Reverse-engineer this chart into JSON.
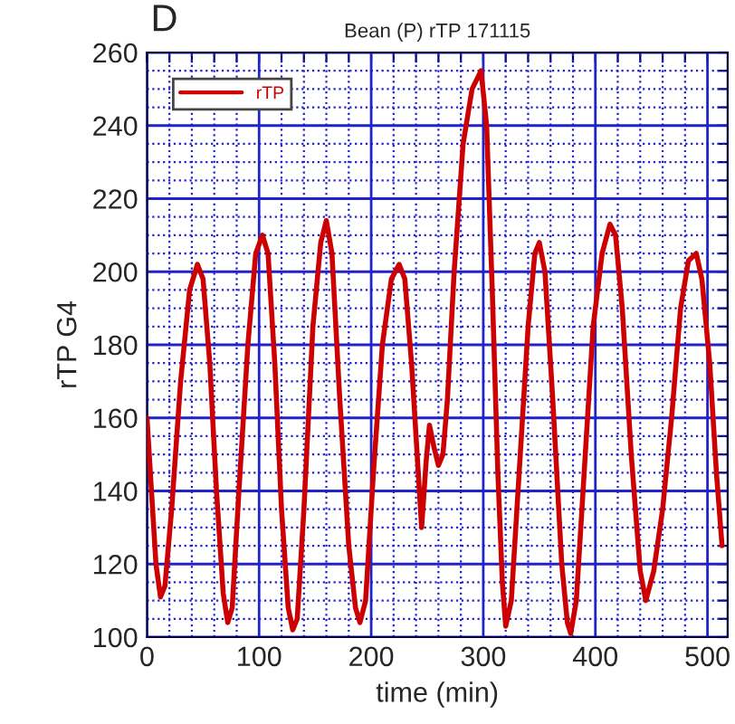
{
  "chart_data": {
    "type": "line",
    "title": "Bean (P) rTP 171115",
    "xlabel": "time (min)",
    "ylabel": "rTP G4",
    "annotations": [
      "D"
    ],
    "x": [
      0,
      4,
      8,
      12,
      16,
      22,
      30,
      38,
      45,
      50,
      56,
      62,
      68,
      72,
      76,
      82,
      90,
      97,
      103,
      108,
      114,
      120,
      126,
      130,
      134,
      140,
      148,
      155,
      160,
      165,
      172,
      180,
      186,
      190,
      195,
      202,
      210,
      218,
      225,
      230,
      236,
      242,
      245,
      249,
      252,
      256,
      260,
      264,
      268,
      274,
      282,
      290,
      298,
      303,
      308,
      313,
      317,
      320,
      325,
      332,
      340,
      346,
      350,
      355,
      362,
      370,
      375,
      378,
      383,
      390,
      398,
      406,
      413,
      418,
      424,
      432,
      440,
      445,
      452,
      460,
      468,
      476,
      483,
      490,
      495,
      502,
      508,
      513
    ],
    "series": [
      {
        "name": "rTP",
        "color": "#cc0000",
        "values": [
          160,
          140,
          120,
          111,
          114,
          135,
          170,
          195,
          202,
          198,
          175,
          140,
          112,
          104,
          108,
          140,
          180,
          205,
          210,
          205,
          175,
          135,
          108,
          102,
          105,
          135,
          185,
          208,
          214,
          205,
          165,
          125,
          108,
          104,
          110,
          145,
          180,
          198,
          202,
          198,
          175,
          145,
          130,
          148,
          158,
          152,
          147,
          150,
          165,
          200,
          235,
          250,
          255,
          240,
          195,
          145,
          115,
          103,
          110,
          145,
          185,
          205,
          208,
          200,
          165,
          120,
          104,
          101,
          110,
          145,
          185,
          205,
          213,
          210,
          190,
          150,
          118,
          110,
          118,
          135,
          160,
          190,
          203,
          205,
          198,
          175,
          145,
          125
        ]
      }
    ],
    "xlim": [
      0,
      518
    ],
    "ylim": [
      100,
      260
    ],
    "xticks": [
      0,
      {
        "value": 20,
        "label": null
      },
      {
        "value": 40,
        "label": null
      },
      {
        "value": 60,
        "label": null
      },
      {
        "value": 80,
        "label": null
      },
      100,
      {
        "value": 120,
        "label": null
      },
      {
        "value": 140,
        "label": null
      },
      {
        "value": 160,
        "label": null
      },
      {
        "value": 180,
        "label": null
      },
      200,
      {
        "value": 220,
        "label": null
      },
      {
        "value": 240,
        "label": null
      },
      {
        "value": 260,
        "label": null
      },
      {
        "value": 280,
        "label": null
      },
      300,
      {
        "value": 320,
        "label": null
      },
      {
        "value": 340,
        "label": null
      },
      {
        "value": 360,
        "label": null
      },
      {
        "value": 380,
        "label": null
      },
      400,
      {
        "value": 420,
        "label": null
      },
      {
        "value": 440,
        "label": null
      },
      {
        "value": 460,
        "label": null
      },
      {
        "value": 480,
        "label": null
      },
      500
    ],
    "yticks": [
      100,
      {
        "value": 105,
        "label": null
      },
      {
        "value": 110,
        "label": null
      },
      {
        "value": 115,
        "label": null
      },
      120,
      {
        "value": 125,
        "label": null
      },
      {
        "value": 130,
        "label": null
      },
      {
        "value": 135,
        "label": null
      },
      140,
      {
        "value": 145,
        "label": null
      },
      {
        "value": 150,
        "label": null
      },
      {
        "value": 155,
        "label": null
      },
      160,
      {
        "value": 165,
        "label": null
      },
      {
        "value": 170,
        "label": null
      },
      {
        "value": 175,
        "label": null
      },
      180,
      {
        "value": 185,
        "label": null
      },
      {
        "value": 190,
        "label": null
      },
      {
        "value": 195,
        "label": null
      },
      200,
      {
        "value": 205,
        "label": null
      },
      {
        "value": 210,
        "label": null
      },
      {
        "value": 215,
        "label": null
      },
      220,
      {
        "value": 225,
        "label": null
      },
      {
        "value": 230,
        "label": null
      },
      {
        "value": 235,
        "label": null
      },
      240,
      {
        "value": 245,
        "label": null
      },
      {
        "value": 250,
        "label": null
      },
      {
        "value": 255,
        "label": null
      },
      260
    ],
    "grid": true,
    "legend": "top left",
    "marker": "none",
    "line_style": "solid"
  }
}
